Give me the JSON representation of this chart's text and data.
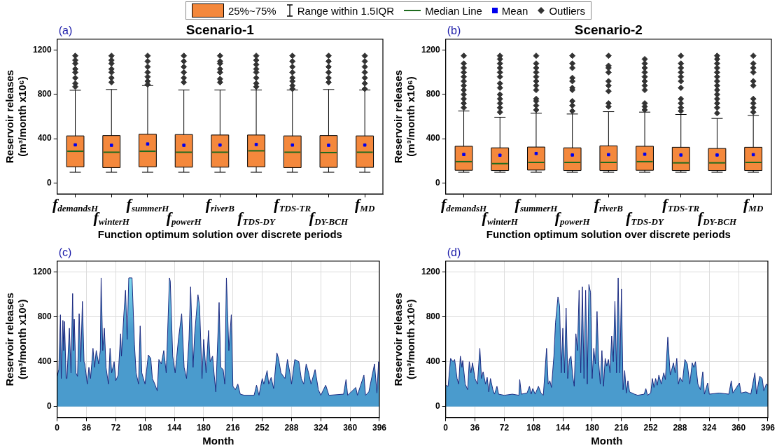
{
  "chart_data": [
    {
      "type": "box",
      "title": "Scenario-1",
      "subtitle": "(a)",
      "xlabel": "Function optimum solution over discrete periods",
      "ylabel": "Reservoir releases\n(m³/month x10⁶)",
      "legend": "top",
      "annotations": [
        "Range within 1.5IQR",
        "Median Line",
        "Mean",
        "Outliers"
      ],
      "categories": [
        "f$_{demandsH}$",
        "f$_{winterH}$",
        "f$_{summerH}$",
        "f$_{powerH}$",
        "f$_{riverB}$",
        "f$_{TDS-DY}$",
        "f$_{TDS-TR}$",
        "f$_{DY-BCH}$",
        "f$_{MD}$"
      ],
      "ylim": [
        -100,
        1300
      ],
      "yticks": [
        0,
        400,
        800,
        1200
      ],
      "series": [
        {
          "name": "25%~75%",
          "color": "#f4883c",
          "boxes": [
            {
              "low": 96,
              "q1": 145,
              "median": 286,
              "q3": 425,
              "high": 838,
              "mean": 344,
              "outliers": [
                870,
                900,
                950,
                1000,
                1030,
                1080,
                1110,
                1150
              ]
            },
            {
              "low": 96,
              "q1": 138,
              "median": 277,
              "q3": 428,
              "high": 845,
              "mean": 340,
              "outliers": [
                910,
                950,
                1000,
                1030,
                1080,
                1110,
                1150
              ]
            },
            {
              "low": 96,
              "q1": 145,
              "median": 286,
              "q3": 440,
              "high": 880,
              "mean": 352,
              "outliers": [
                890,
                920,
                960,
                1000,
                1050,
                1100,
                1150
              ]
            },
            {
              "low": 96,
              "q1": 142,
              "median": 277,
              "q3": 437,
              "high": 840,
              "mean": 340,
              "outliers": [
                910,
                950,
                1000,
                1050,
                1100,
                1150
              ]
            },
            {
              "low": 96,
              "q1": 142,
              "median": 277,
              "q3": 433,
              "high": 840,
              "mean": 342,
              "outliers": [
                910,
                940,
                1000,
                1030,
                1080,
                1100,
                1150
              ]
            },
            {
              "low": 96,
              "q1": 145,
              "median": 290,
              "q3": 433,
              "high": 840,
              "mean": 347,
              "outliers": [
                870,
                900,
                950,
                1000,
                1030,
                1070,
                1110,
                1150
              ]
            },
            {
              "low": 96,
              "q1": 138,
              "median": 277,
              "q3": 425,
              "high": 840,
              "mean": 342,
              "outliers": [
                850,
                880,
                920,
                950,
                1000,
                1050,
                1100,
                1150
              ]
            },
            {
              "low": 96,
              "q1": 140,
              "median": 274,
              "q3": 428,
              "high": 845,
              "mean": 340,
              "outliers": [
                910,
                950,
                1000,
                1050,
                1100,
                1150
              ]
            },
            {
              "low": 96,
              "q1": 140,
              "median": 277,
              "q3": 425,
              "high": 840,
              "mean": 342,
              "outliers": [
                850,
                900,
                950,
                1000,
                1050,
                1100,
                1150
              ]
            }
          ]
        }
      ]
    },
    {
      "type": "box",
      "title": "Scenario-2",
      "subtitle": "(b)",
      "xlabel": "Function optimum solution over discrete periods",
      "ylabel": "Reservoir releases\n(m³/month x10⁶)",
      "categories": [
        "f$_{demandsH}$",
        "f$_{winterH}$",
        "f$_{summerH}$",
        "f$_{powerH}$",
        "f$_{riverB}$",
        "f$_{TDS-DY}$",
        "f$_{TDS-TR}$",
        "f$_{DY-BCH}$",
        "f$_{MD}$"
      ],
      "ylim": [
        -100,
        1300
      ],
      "yticks": [
        0,
        400,
        800,
        1200
      ],
      "series": [
        {
          "color": "#f4883c",
          "boxes": [
            {
              "low": 96,
              "q1": 114,
              "median": 192,
              "q3": 331,
              "high": 650,
              "mean": 257,
              "outliers": [
                680,
                720,
                760,
                800,
                840,
                880,
                920,
                960,
                1000,
                1040,
                1080,
                1150
              ]
            },
            {
              "low": 96,
              "q1": 112,
              "median": 174,
              "q3": 317,
              "high": 594,
              "mean": 250,
              "outliers": [
                640,
                680,
                720,
                760,
                800,
                860,
                900,
                960,
                1000,
                1040,
                1080,
                1120,
                1150
              ]
            },
            {
              "low": 96,
              "q1": 116,
              "median": 185,
              "q3": 324,
              "high": 630,
              "mean": 266,
              "outliers": [
                660,
                700,
                740,
                760,
                840,
                880,
                920,
                960,
                1000,
                1040,
                1080,
                1150
              ]
            },
            {
              "low": 96,
              "q1": 112,
              "median": 185,
              "q3": 317,
              "high": 623,
              "mean": 252,
              "outliers": [
                650,
                700,
                740,
                840,
                860,
                920,
                950,
                1040,
                1080,
                1150
              ]
            },
            {
              "low": 96,
              "q1": 112,
              "median": 185,
              "q3": 335,
              "high": 644,
              "mean": 255,
              "outliers": [
                690,
                720,
                830,
                880,
                920,
                1000,
                1040,
                1060,
                1150
              ]
            },
            {
              "low": 96,
              "q1": 114,
              "median": 192,
              "q3": 331,
              "high": 640,
              "mean": 259,
              "outliers": [
                660,
                690,
                720,
                840,
                880,
                920,
                960,
                1000,
                1040,
                1080,
                1120
              ]
            },
            {
              "low": 96,
              "q1": 112,
              "median": 181,
              "q3": 322,
              "high": 619,
              "mean": 252,
              "outliers": [
                650,
                680,
                720,
                760,
                860,
                920,
                960,
                1000,
                1040,
                1080,
                1150
              ]
            },
            {
              "low": 96,
              "q1": 112,
              "median": 181,
              "q3": 311,
              "high": 583,
              "mean": 252,
              "outliers": [
                630,
                680,
                720,
                760,
                800,
                840,
                880,
                920,
                960,
                1000,
                1040,
                1080,
                1120,
                1150
              ]
            },
            {
              "low": 96,
              "q1": 112,
              "median": 185,
              "q3": 322,
              "high": 610,
              "mean": 255,
              "outliers": [
                640,
                680,
                720,
                760,
                880,
                920,
                1000,
                1040,
                1080,
                1150
              ]
            }
          ]
        }
      ]
    },
    {
      "type": "area",
      "subtitle": "(c)",
      "xlabel": "Month",
      "ylabel": "Reservoir releases\n(m³/month x10⁶)",
      "grid": true,
      "xlim": [
        0,
        396
      ],
      "xticks": [
        0,
        36,
        72,
        108,
        144,
        180,
        216,
        252,
        288,
        324,
        360,
        396
      ],
      "ylim": [
        -100,
        1300
      ],
      "yticks": [
        0,
        400,
        800,
        1200
      ],
      "x": [
        0,
        2,
        4,
        5,
        7,
        8,
        9,
        11,
        12,
        15,
        17,
        19,
        20,
        21,
        23,
        25,
        27,
        29,
        31,
        33,
        34,
        37,
        39,
        41,
        44,
        46,
        48,
        51,
        53,
        54,
        56,
        58,
        60,
        63,
        65,
        67,
        70,
        72,
        75,
        78,
        79,
        82,
        84,
        86,
        88,
        92,
        95,
        97,
        100,
        102,
        104,
        108,
        112,
        115,
        117,
        120,
        123,
        125,
        128,
        131,
        134,
        135,
        138,
        139,
        142,
        145,
        149,
        153,
        156,
        159,
        162,
        164,
        167,
        169,
        173,
        175,
        178,
        180,
        183,
        186,
        188,
        191,
        193,
        195,
        199,
        201,
        204,
        206,
        208,
        211,
        214,
        216,
        219,
        222,
        225,
        230,
        242,
        245,
        248,
        252,
        254,
        258,
        260,
        263,
        266,
        270,
        272,
        275,
        280,
        283,
        286,
        288,
        292,
        297,
        300,
        303,
        306,
        309,
        312,
        317,
        321,
        324,
        330,
        334,
        352,
        355,
        357,
        367,
        369,
        377,
        379,
        383,
        390,
        393,
        395,
        396
      ],
      "series": [
        {
          "color": "#4a9bcd",
          "values": [
            270,
            330,
            820,
            250,
            770,
            500,
            760,
            250,
            250,
            700,
            300,
            1010,
            500,
            780,
            300,
            270,
            830,
            400,
            940,
            400,
            380,
            200,
            350,
            250,
            520,
            350,
            500,
            380,
            500,
            1150,
            500,
            700,
            350,
            200,
            520,
            300,
            400,
            230,
            280,
            650,
            450,
            830,
            1040,
            600,
            1150,
            1150,
            550,
            300,
            200,
            720,
            300,
            200,
            460,
            430,
            250,
            200,
            140,
            420,
            380,
            500,
            300,
            500,
            1150,
            1120,
            450,
            300,
            600,
            830,
            350,
            250,
            600,
            1070,
            350,
            650,
            1000,
            900,
            250,
            600,
            300,
            680,
            400,
            450,
            280,
            130,
            930,
            350,
            330,
            200,
            1150,
            500,
            820,
            180,
            150,
            200,
            110,
            100,
            100,
            190,
            100,
            250,
            200,
            320,
            200,
            260,
            160,
            480,
            430,
            300,
            250,
            420,
            300,
            200,
            420,
            400,
            250,
            200,
            380,
            300,
            200,
            330,
            150,
            100,
            190,
            100,
            110,
            240,
            100,
            170,
            100,
            280,
            100,
            130,
            380,
            120,
            400,
            150
          ]
        }
      ]
    },
    {
      "type": "area",
      "subtitle": "(d)",
      "xlabel": "Month",
      "ylabel": "Reservoir releases\n(m³/month x10⁶)",
      "grid": true,
      "xlim": [
        0,
        396
      ],
      "xticks": [
        0,
        36,
        72,
        108,
        144,
        180,
        216,
        252,
        288,
        324,
        360,
        396
      ],
      "ylim": [
        -100,
        1300
      ],
      "yticks": [
        0,
        400,
        800,
        1200
      ],
      "x": [
        0,
        3,
        6,
        9,
        11,
        14,
        16,
        18,
        20,
        21,
        24,
        27,
        29,
        31,
        33,
        36,
        39,
        42,
        44,
        46,
        49,
        51,
        53,
        55,
        58,
        60,
        63,
        65,
        72,
        82,
        90,
        91,
        93,
        100,
        103,
        105,
        107,
        110,
        114,
        117,
        120,
        124,
        126,
        128,
        130,
        133,
        135,
        138,
        140,
        142,
        144,
        146,
        148,
        150,
        152,
        154,
        156,
        158,
        160,
        162,
        164,
        166,
        168,
        170,
        172,
        174,
        176,
        178,
        180,
        182,
        184,
        186,
        188,
        190,
        192,
        194,
        196,
        198,
        200,
        202,
        204,
        206,
        208,
        210,
        212,
        214,
        216,
        218,
        220,
        222,
        224,
        226,
        232,
        236,
        244,
        246,
        248,
        252,
        254,
        256,
        258,
        260,
        262,
        265,
        268,
        270,
        273,
        276,
        280,
        282,
        284,
        286,
        288,
        291,
        294,
        297,
        300,
        303,
        305,
        307,
        310,
        313,
        316,
        318,
        322,
        324,
        336,
        348,
        351,
        353,
        361,
        363,
        369,
        375,
        380,
        382,
        386,
        389,
        391,
        394,
        396
      ],
      "series": [
        {
          "color": "#4a9bcd",
          "values": [
            190,
            180,
            430,
            400,
            420,
            250,
            200,
            450,
            350,
            410,
            200,
            150,
            400,
            300,
            390,
            250,
            200,
            520,
            250,
            310,
            200,
            260,
            130,
            250,
            150,
            110,
            180,
            110,
            100,
            110,
            100,
            240,
            110,
            120,
            180,
            110,
            160,
            110,
            180,
            120,
            100,
            520,
            200,
            230,
            170,
            450,
            750,
            980,
            900,
            300,
            700,
            300,
            880,
            250,
            420,
            450,
            280,
            180,
            650,
            500,
            1040,
            300,
            1070,
            250,
            1040,
            200,
            1090,
            1020,
            250,
            520,
            380,
            850,
            400,
            200,
            500,
            180,
            430,
            360,
            420,
            300,
            630,
            400,
            940,
            300,
            1150,
            300,
            1050,
            150,
            320,
            120,
            230,
            130,
            110,
            100,
            110,
            160,
            100,
            120,
            250,
            170,
            250,
            190,
            280,
            200,
            300,
            240,
            620,
            280,
            390,
            300,
            430,
            200,
            260,
            220,
            420,
            380,
            200,
            390,
            350,
            400,
            200,
            150,
            310,
            110,
            210,
            110,
            120,
            110,
            230,
            120,
            210,
            120,
            130,
            110,
            300,
            110,
            270,
            250,
            140,
            200,
            190
          ]
        }
      ]
    }
  ]
}
